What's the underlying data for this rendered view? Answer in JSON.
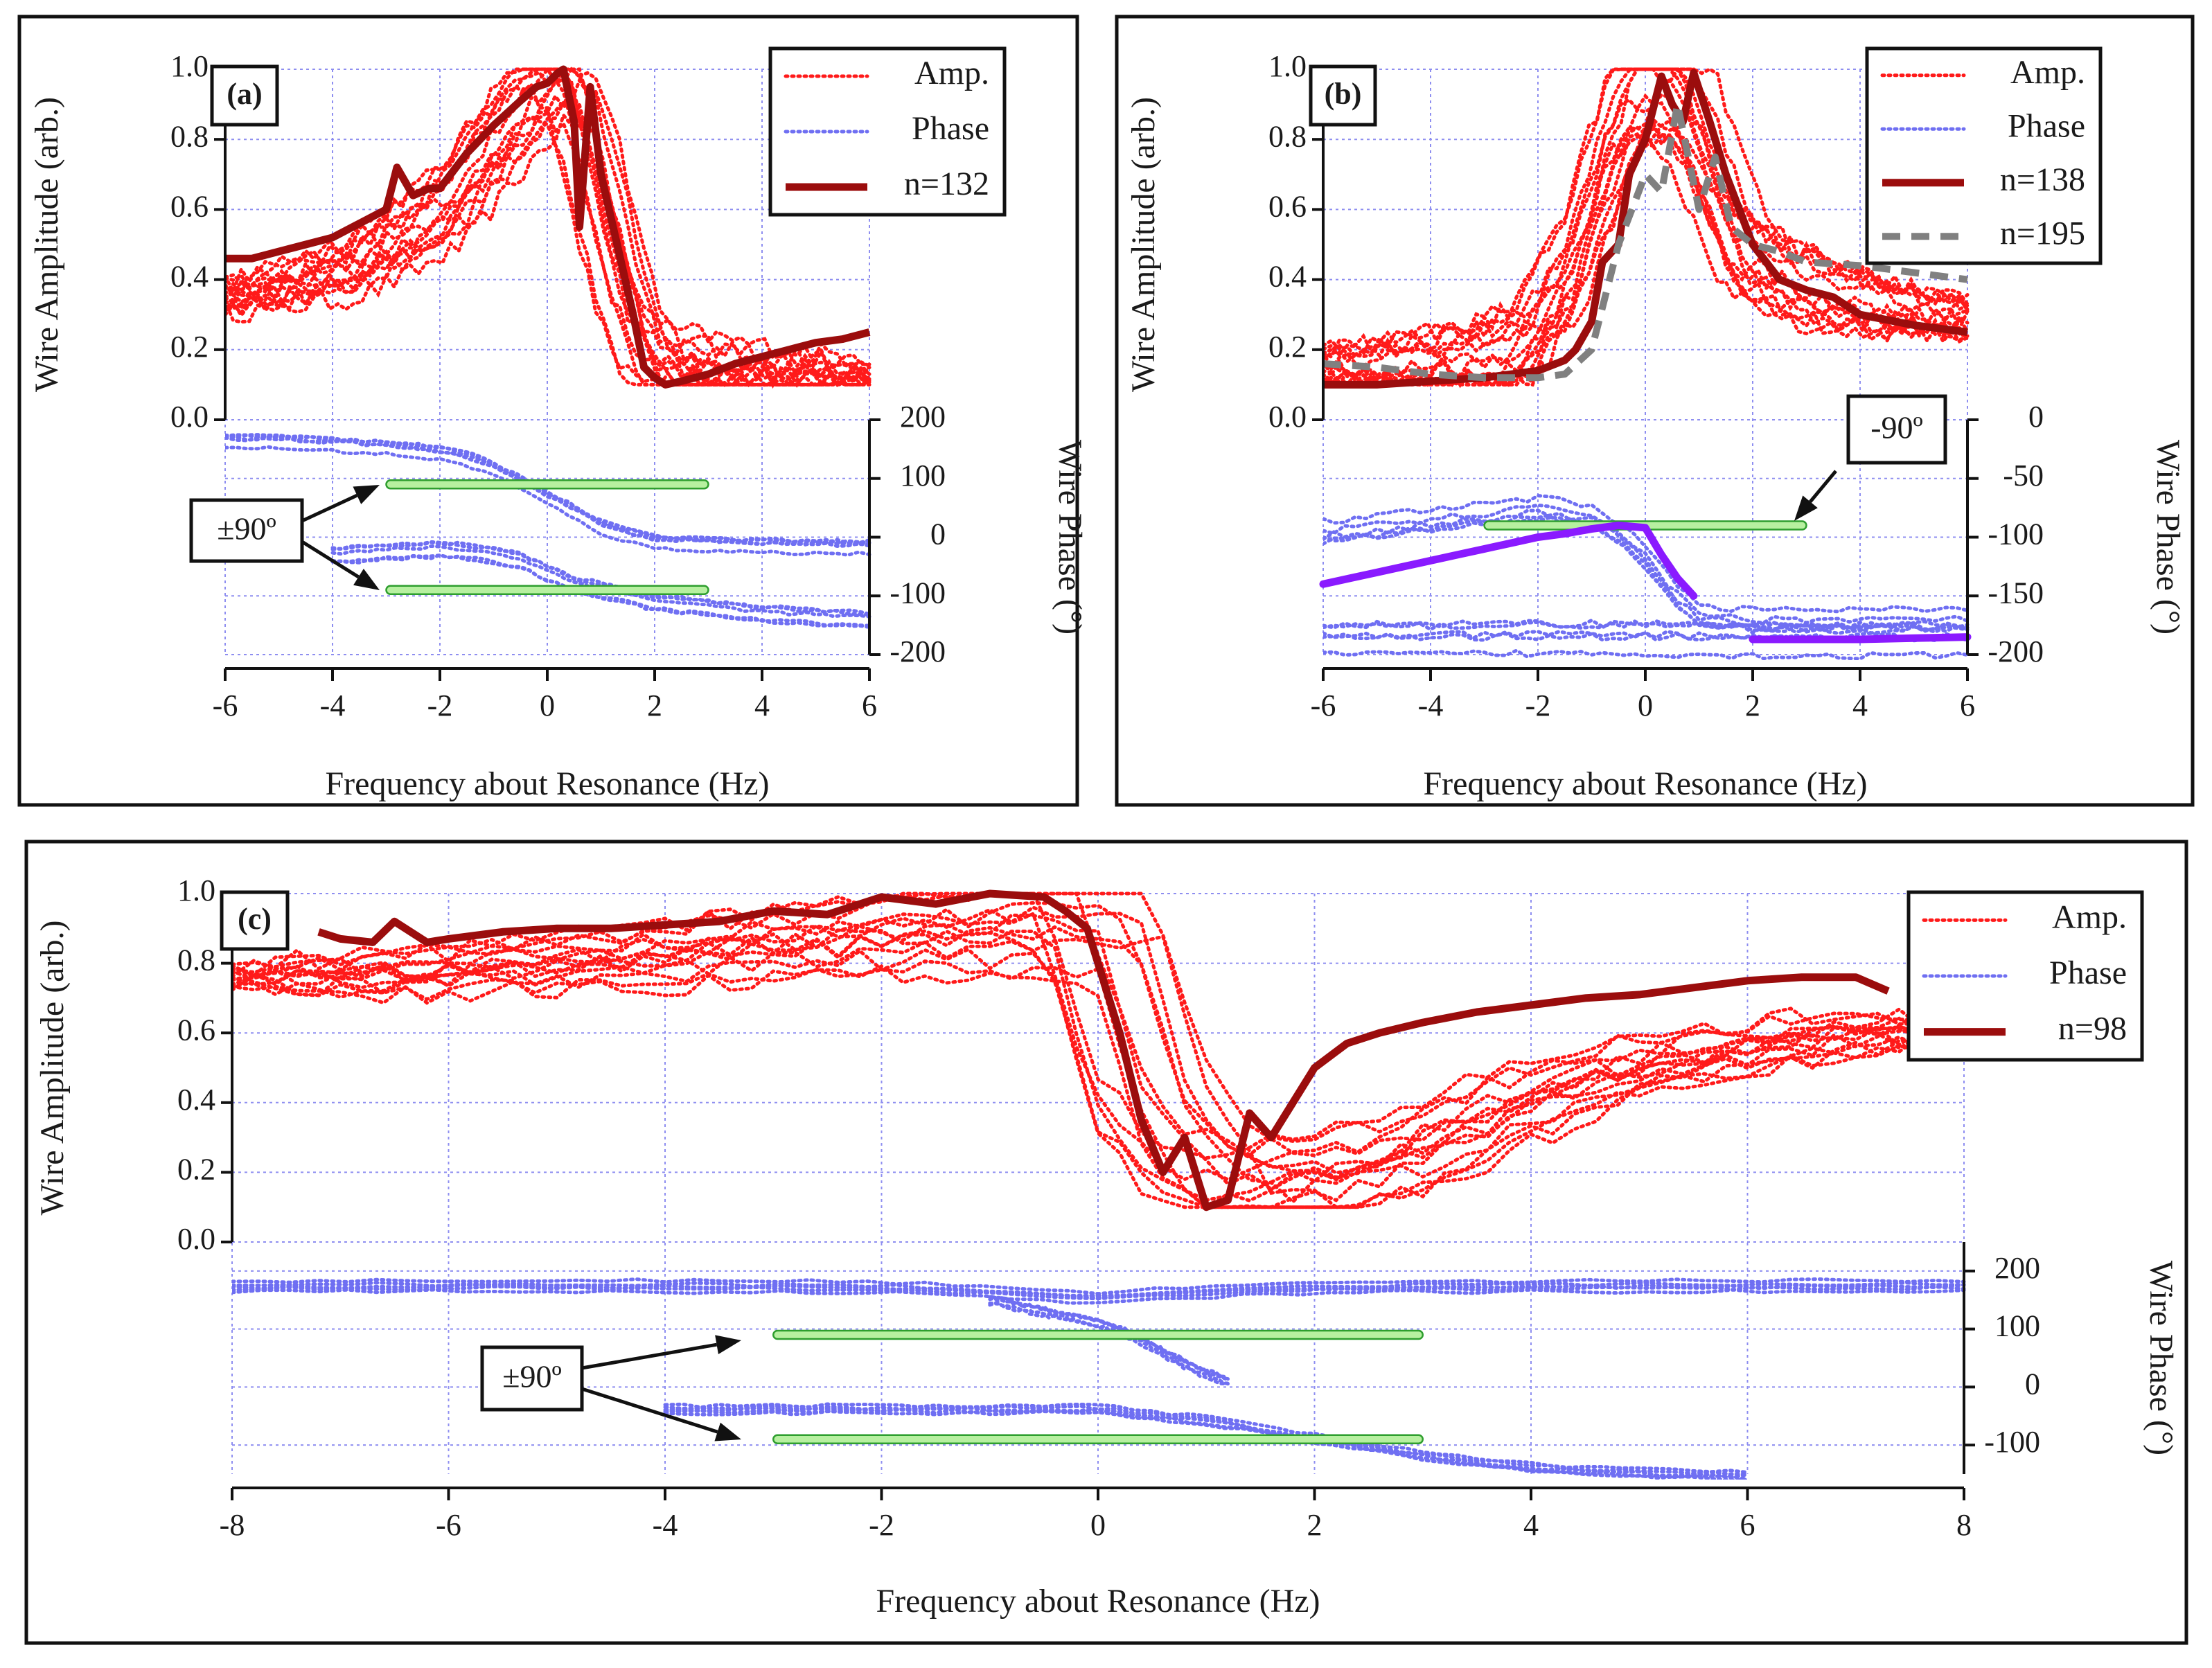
{
  "figure": {
    "colors": {
      "amp": "#ff1a1a",
      "amp_bold": "#9b0d0d",
      "phase": "#6f6ff2",
      "phase_bold": "#8a1aff",
      "gray": "#808080",
      "marker_fill": "#b7f0a0",
      "marker_stroke": "#2e9e2e",
      "grid": "#8e8ef0"
    }
  },
  "chart_data": [
    {
      "panel": "(a)",
      "type": "line",
      "xlabel": "Frequency about Resonance (Hz)",
      "ylabel": "Wire Amplitude (arb.)",
      "y2label": "Wire Phase (°)",
      "xlim": [
        -6,
        6
      ],
      "ylim": [
        0,
        1
      ],
      "y2lim": [
        -200,
        200
      ],
      "x_ticks": [
        "-6",
        "-4",
        "-2",
        "0",
        "2",
        "4",
        "6"
      ],
      "y_ticks": [
        "0.0",
        "0.2",
        "0.4",
        "0.6",
        "0.8",
        "1.0"
      ],
      "y2_ticks": [
        "-200",
        "-100",
        "0",
        "100",
        "200"
      ],
      "legend": {
        "position": "top-right",
        "entries": [
          {
            "label": "Amp.",
            "style": "amp"
          },
          {
            "label": "Phase",
            "style": "phase"
          },
          {
            "label": "n=132",
            "style": "amp_bold"
          }
        ]
      },
      "annotation": "±90º",
      "phase_markers": [
        90,
        -90
      ],
      "marker_x_range": [
        -3,
        3
      ],
      "amp_profile": {
        "x": [
          -6,
          -4,
          -3,
          -2,
          -1,
          -0.5,
          0,
          0.5,
          1,
          1.5,
          2,
          3,
          4,
          5,
          6
        ],
        "y": [
          0.35,
          0.42,
          0.5,
          0.6,
          0.8,
          0.9,
          0.98,
          0.92,
          0.6,
          0.3,
          0.15,
          0.14,
          0.13,
          0.13,
          0.13
        ]
      },
      "bold_series": [
        {
          "name": "n=132",
          "style": "amp_bold",
          "axis": "y",
          "x": [
            -6,
            -5.5,
            -5,
            -4.5,
            -4,
            -3.5,
            -3,
            -2.8,
            -2.5,
            -2.2,
            -2,
            -1.5,
            -1,
            -0.5,
            -0.2,
            0,
            0.2,
            0.3,
            0.5,
            0.6,
            0.8,
            1,
            1.3,
            1.6,
            1.8,
            2,
            2.2,
            2.5,
            3,
            3.5,
            4,
            4.5,
            5,
            5.5,
            6
          ],
          "y": [
            0.46,
            0.46,
            0.48,
            0.5,
            0.52,
            0.56,
            0.6,
            0.72,
            0.64,
            0.66,
            0.66,
            0.76,
            0.84,
            0.91,
            0.95,
            0.96,
            0.99,
            1.0,
            0.85,
            0.55,
            0.95,
            0.7,
            0.5,
            0.3,
            0.15,
            0.12,
            0.1,
            0.11,
            0.13,
            0.16,
            0.18,
            0.2,
            0.22,
            0.23,
            0.25
          ]
        }
      ],
      "phase_groups": [
        {
          "x": [
            -6,
            -5,
            -4,
            -3,
            -2,
            -1.5,
            -1,
            -0.5,
            0,
            0.5,
            1,
            1.5,
            2,
            3,
            4,
            5,
            6
          ],
          "y": [
            165,
            165,
            160,
            155,
            145,
            135,
            120,
            95,
            70,
            45,
            20,
            5,
            -5,
            -10,
            -12,
            -14,
            -15
          ]
        },
        {
          "x": [
            -4,
            -3,
            -2,
            -1,
            -0.5,
            0,
            0.5,
            1,
            1.5,
            2,
            3,
            4,
            5,
            6
          ],
          "y": [
            -30,
            -25,
            -20,
            -30,
            -40,
            -60,
            -80,
            -90,
            -100,
            -110,
            -120,
            -130,
            -135,
            -140
          ]
        }
      ]
    },
    {
      "panel": "(b)",
      "type": "line",
      "xlabel": "Frequency about Resonance (Hz)",
      "ylabel": "Wire Amplitude (arb.)",
      "y2label": "Wire Phase (°)",
      "xlim": [
        -6,
        6
      ],
      "ylim": [
        0,
        1
      ],
      "y2lim": [
        -200,
        0
      ],
      "x_ticks": [
        "-6",
        "-4",
        "-2",
        "0",
        "2",
        "4",
        "6"
      ],
      "y_ticks": [
        "0.0",
        "0.2",
        "0.4",
        "0.6",
        "0.8",
        "1.0"
      ],
      "y2_ticks": [
        "-200",
        "-150",
        "-100",
        "-50",
        "0"
      ],
      "legend": {
        "position": "top-right",
        "entries": [
          {
            "label": "Amp.",
            "style": "amp"
          },
          {
            "label": "Phase",
            "style": "phase"
          },
          {
            "label": "n=138",
            "style": "amp_bold"
          },
          {
            "label": "n=195",
            "style": "gray"
          }
        ]
      },
      "annotation": "-90º",
      "phase_markers": [
        -90
      ],
      "marker_x_range": [
        -3,
        3
      ],
      "amp_profile": {
        "x": [
          -6,
          -4,
          -2,
          -1,
          -0.5,
          0,
          0.5,
          1,
          1.5,
          2,
          3,
          4,
          5,
          6
        ],
        "y": [
          0.15,
          0.16,
          0.2,
          0.45,
          0.7,
          0.9,
          0.95,
          0.9,
          0.7,
          0.5,
          0.4,
          0.35,
          0.32,
          0.3
        ]
      },
      "bold_series": [
        {
          "name": "n=138",
          "style": "amp_bold",
          "axis": "y",
          "x": [
            -6,
            -5,
            -4,
            -3,
            -2.5,
            -2,
            -1.5,
            -1.3,
            -1,
            -0.8,
            -0.5,
            -0.3,
            0,
            0.3,
            0.5,
            0.7,
            0.9,
            1.2,
            1.5,
            2,
            2.5,
            3,
            3.5,
            4,
            5,
            6
          ],
          "y": [
            0.1,
            0.1,
            0.11,
            0.12,
            0.13,
            0.14,
            0.17,
            0.2,
            0.28,
            0.45,
            0.5,
            0.7,
            0.8,
            0.98,
            0.9,
            0.85,
            0.99,
            0.85,
            0.7,
            0.5,
            0.4,
            0.37,
            0.35,
            0.3,
            0.27,
            0.25
          ]
        },
        {
          "name": "n=195",
          "style": "gray",
          "axis": "y",
          "x": [
            -6,
            -5,
            -4,
            -3,
            -2.5,
            -2,
            -1.5,
            -1,
            -0.5,
            0,
            0.3,
            0.6,
            1,
            1.3,
            1.6,
            2,
            2.5,
            3,
            4,
            5,
            6
          ],
          "y": [
            0.16,
            0.15,
            0.13,
            0.12,
            0.12,
            0.12,
            0.13,
            0.2,
            0.5,
            0.7,
            0.65,
            0.9,
            0.6,
            0.75,
            0.55,
            0.5,
            0.48,
            0.45,
            0.44,
            0.42,
            0.4
          ]
        },
        {
          "name": "phase-bold",
          "style": "phase_bold",
          "axis": "y2",
          "x": [
            -6,
            -5.5,
            -5,
            -4.5,
            -4,
            -3.5,
            -3,
            -2.5,
            -2,
            -1.5,
            -1,
            -0.5,
            0,
            0.3,
            0.6,
            0.9
          ],
          "y": [
            -140,
            -135,
            -130,
            -125,
            -120,
            -115,
            -110,
            -105,
            -100,
            -97,
            -93,
            -90,
            -92,
            -115,
            -135,
            -150
          ]
        },
        {
          "name": "phase-bold-tail",
          "style": "phase_bold",
          "axis": "y2",
          "x": [
            2,
            3,
            4,
            5,
            6
          ],
          "y": [
            -187,
            -187,
            -187,
            -186,
            -185
          ]
        }
      ],
      "phase_groups": [
        {
          "x": [
            -6,
            -4,
            -2,
            -1,
            -0.5,
            0,
            0.5,
            1,
            2,
            3,
            4,
            5,
            6
          ],
          "y": [
            -90,
            -80,
            -70,
            -75,
            -90,
            -110,
            -140,
            -160,
            -165,
            -165,
            -165,
            -165,
            -165
          ]
        },
        {
          "x": [
            -6,
            -4,
            -2,
            0,
            1,
            2,
            4,
            6
          ],
          "y": [
            -185,
            -185,
            -184,
            -184,
            -185,
            -186,
            -186,
            -186
          ]
        }
      ]
    },
    {
      "panel": "(c)",
      "type": "line",
      "xlabel": "Frequency about Resonance (Hz)",
      "ylabel": "Wire Amplitude (arb.)",
      "y2label": "Wire Phase (°)",
      "xlim": [
        -8,
        8
      ],
      "ylim": [
        0,
        1
      ],
      "y2lim": [
        -150,
        250
      ],
      "x_ticks": [
        "-8",
        "-6",
        "-4",
        "-2",
        "0",
        "2",
        "4",
        "6",
        "8"
      ],
      "y_ticks": [
        "0.0",
        "0.2",
        "0.4",
        "0.6",
        "0.8",
        "1.0"
      ],
      "y2_ticks": [
        "-100",
        "0",
        "100",
        "200"
      ],
      "legend": {
        "position": "top-right",
        "entries": [
          {
            "label": "Amp.",
            "style": "amp"
          },
          {
            "label": "Phase",
            "style": "phase"
          },
          {
            "label": "n=98",
            "style": "amp_bold"
          }
        ]
      },
      "annotation": "±90º",
      "phase_markers": [
        90,
        -90
      ],
      "marker_x_range": [
        -3,
        3
      ],
      "amp_profile": {
        "x": [
          -8,
          -6,
          -4,
          -2,
          -1,
          0,
          0.5,
          1,
          1.5,
          2,
          3,
          4,
          5,
          6,
          7,
          7.5
        ],
        "y": [
          0.75,
          0.78,
          0.82,
          0.88,
          0.9,
          0.9,
          0.4,
          0.2,
          0.15,
          0.18,
          0.25,
          0.4,
          0.5,
          0.55,
          0.6,
          0.6
        ]
      },
      "bold_series": [
        {
          "name": "n=98",
          "style": "amp_bold",
          "axis": "y",
          "x": [
            -7.2,
            -7,
            -6.7,
            -6.5,
            -6.2,
            -6,
            -5.5,
            -5,
            -4.5,
            -4,
            -3.5,
            -3,
            -2.5,
            -2,
            -1.5,
            -1,
            -0.5,
            -0.3,
            -0.1,
            0,
            0.2,
            0.4,
            0.6,
            0.8,
            1,
            1.2,
            1.4,
            1.6,
            1.8,
            2,
            2.3,
            2.6,
            3,
            3.5,
            4,
            4.5,
            5,
            5.5,
            6,
            6.5,
            7,
            7.3
          ],
          "y": [
            0.89,
            0.87,
            0.86,
            0.92,
            0.86,
            0.87,
            0.89,
            0.9,
            0.9,
            0.91,
            0.92,
            0.95,
            0.94,
            0.99,
            0.97,
            1.0,
            0.99,
            0.95,
            0.9,
            0.8,
            0.6,
            0.35,
            0.2,
            0.3,
            0.1,
            0.12,
            0.37,
            0.3,
            0.4,
            0.5,
            0.57,
            0.6,
            0.63,
            0.66,
            0.68,
            0.7,
            0.71,
            0.73,
            0.75,
            0.76,
            0.76,
            0.72
          ]
        }
      ],
      "phase_groups": [
        {
          "x": [
            -8,
            -6,
            -4,
            -2,
            -1,
            0,
            1,
            2,
            4,
            6,
            8
          ],
          "y": [
            170,
            170,
            170,
            168,
            160,
            150,
            160,
            168,
            170,
            170,
            170
          ]
        },
        {
          "x": [
            -1,
            -0.5,
            0,
            0.3,
            0.6,
            0.9,
            1.2
          ],
          "y": [
            150,
            130,
            110,
            90,
            60,
            30,
            10
          ]
        },
        {
          "x": [
            -4,
            -2,
            0,
            1,
            2,
            3,
            4,
            5,
            6
          ],
          "y": [
            -30,
            -30,
            -30,
            -50,
            -80,
            -110,
            -130,
            -140,
            -145
          ]
        }
      ]
    }
  ]
}
